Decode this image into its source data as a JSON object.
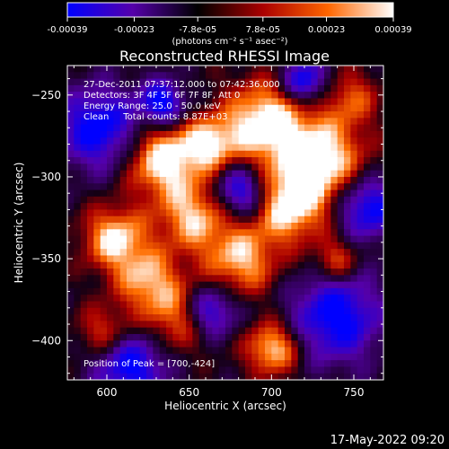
{
  "colorbar": {
    "tick_labels": [
      "-0.00039",
      "-0.00023",
      "-7.8e-05",
      "7.8e-05",
      "0.00023",
      "0.00039"
    ],
    "tick_values": [
      -0.00039,
      -0.00023,
      -7.8e-05,
      7.8e-05,
      0.00023,
      0.00039
    ],
    "range": [
      -0.00039,
      0.00039
    ],
    "units": "(photons cm⁻² s⁻¹ asec⁻²)",
    "colors": [
      "#0000ff",
      "#5500aa",
      "#000000",
      "#aa0000",
      "#ff6600",
      "#ffffff"
    ]
  },
  "chart_data": {
    "type": "heatmap",
    "title": "Reconstructed RHESSI Image",
    "xlabel": "Heliocentric X (arcsec)",
    "ylabel": "Heliocentric Y (arcsec)",
    "xlim": [
      576,
      768
    ],
    "ylim": [
      -424,
      -232
    ],
    "x_ticks": [
      600,
      650,
      700,
      750
    ],
    "y_ticks": [
      -250,
      -300,
      -350,
      -400
    ],
    "annotations": {
      "time_range": "27-Dec-2011 07:37:12.000 to 07:42:36.000",
      "detectors": "Detectors: 3F 4F 5F 6F 7F 8F, Att 0",
      "energy": "Energy Range: 25.0 - 50.0 keV",
      "method": "Clean     Total counts: 8.87E+03",
      "peak": "Position of Peak = [700,-424]"
    },
    "peak_position": [
      700,
      -424
    ],
    "total_counts": 8870,
    "energy_range_keV": [
      25.0,
      50.0
    ],
    "grid": false
  },
  "footer": {
    "timestamp": "17-May-2022 09:20"
  }
}
